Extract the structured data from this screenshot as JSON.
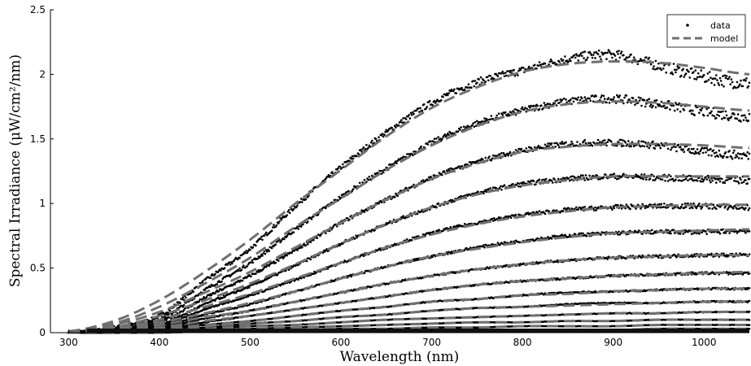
{
  "chart_data": {
    "type": "line",
    "title": "",
    "xlabel": "Wavelength (nm)",
    "ylabel": "Spectral Irradiance (μW/cm²/nm)",
    "xlim": [
      280,
      1050
    ],
    "ylim": [
      0,
      2.5
    ],
    "xticks": [
      300,
      400,
      500,
      600,
      700,
      800,
      900,
      1000
    ],
    "yticks": [
      0,
      0.5,
      1,
      1.5,
      2,
      2.5
    ],
    "ytick_labels": [
      "0",
      "0.5",
      "1",
      "1.5",
      "2",
      "2.5"
    ],
    "grid": false,
    "legend": {
      "position": "top-right",
      "entries": [
        "data",
        "model"
      ]
    },
    "x": [
      300,
      350,
      400,
      450,
      500,
      550,
      600,
      650,
      700,
      750,
      800,
      850,
      900,
      950,
      1000,
      1050
    ],
    "series": [
      {
        "curve": 1,
        "model": [
          0.01,
          0.09,
          0.25,
          0.47,
          0.72,
          1.0,
          1.26,
          1.52,
          1.74,
          1.9,
          2.02,
          2.08,
          2.1,
          2.09,
          2.05,
          2.0
        ],
        "data": [
          0.0,
          0.04,
          0.13,
          0.4,
          0.65,
          0.98,
          1.28,
          1.55,
          1.78,
          1.94,
          2.03,
          2.12,
          2.15,
          2.07,
          1.98,
          1.93
        ]
      },
      {
        "curve": 2,
        "model": [
          0.01,
          0.07,
          0.2,
          0.38,
          0.58,
          0.82,
          1.04,
          1.26,
          1.45,
          1.6,
          1.71,
          1.77,
          1.79,
          1.78,
          1.75,
          1.72
        ],
        "data": [
          0.0,
          0.03,
          0.1,
          0.33,
          0.54,
          0.8,
          1.05,
          1.27,
          1.47,
          1.62,
          1.72,
          1.79,
          1.81,
          1.77,
          1.71,
          1.67
        ]
      },
      {
        "curve": 3,
        "model": [
          0.01,
          0.06,
          0.16,
          0.31,
          0.47,
          0.66,
          0.85,
          1.03,
          1.19,
          1.31,
          1.4,
          1.44,
          1.46,
          1.46,
          1.45,
          1.43
        ],
        "data": [
          0.0,
          0.02,
          0.08,
          0.27,
          0.44,
          0.64,
          0.85,
          1.03,
          1.2,
          1.32,
          1.41,
          1.46,
          1.47,
          1.45,
          1.4,
          1.37
        ]
      },
      {
        "curve": 4,
        "model": [
          0.0,
          0.04,
          0.13,
          0.25,
          0.38,
          0.53,
          0.69,
          0.84,
          0.97,
          1.07,
          1.14,
          1.18,
          1.21,
          1.21,
          1.21,
          1.21
        ],
        "data": [
          0.0,
          0.02,
          0.06,
          0.22,
          0.36,
          0.52,
          0.69,
          0.84,
          0.97,
          1.08,
          1.15,
          1.19,
          1.21,
          1.2,
          1.19,
          1.18
        ]
      },
      {
        "curve": 5,
        "model": [
          0.0,
          0.03,
          0.1,
          0.2,
          0.3,
          0.42,
          0.54,
          0.66,
          0.76,
          0.84,
          0.9,
          0.94,
          0.97,
          0.98,
          0.99,
          0.99
        ],
        "data": [
          0.0,
          0.01,
          0.05,
          0.18,
          0.29,
          0.41,
          0.54,
          0.66,
          0.77,
          0.85,
          0.91,
          0.95,
          0.97,
          0.98,
          0.98,
          0.97
        ]
      },
      {
        "curve": 6,
        "model": [
          0.0,
          0.03,
          0.08,
          0.15,
          0.23,
          0.32,
          0.42,
          0.51,
          0.59,
          0.65,
          0.7,
          0.74,
          0.77,
          0.78,
          0.79,
          0.8
        ],
        "data": [
          0.0,
          0.01,
          0.04,
          0.14,
          0.22,
          0.32,
          0.42,
          0.51,
          0.59,
          0.66,
          0.71,
          0.75,
          0.77,
          0.78,
          0.78,
          0.79
        ]
      },
      {
        "curve": 7,
        "model": [
          0.0,
          0.02,
          0.06,
          0.12,
          0.17,
          0.24,
          0.31,
          0.38,
          0.44,
          0.49,
          0.53,
          0.56,
          0.58,
          0.59,
          0.6,
          0.6
        ],
        "data": [
          0.0,
          0.01,
          0.03,
          0.11,
          0.17,
          0.24,
          0.31,
          0.38,
          0.44,
          0.49,
          0.53,
          0.56,
          0.58,
          0.59,
          0.6,
          0.6
        ]
      },
      {
        "curve": 8,
        "model": [
          0.0,
          0.01,
          0.04,
          0.09,
          0.13,
          0.18,
          0.23,
          0.28,
          0.33,
          0.37,
          0.4,
          0.42,
          0.44,
          0.45,
          0.46,
          0.47
        ],
        "data": [
          0.0,
          0.01,
          0.02,
          0.08,
          0.13,
          0.18,
          0.23,
          0.28,
          0.33,
          0.37,
          0.4,
          0.42,
          0.44,
          0.45,
          0.46,
          0.46
        ]
      },
      {
        "curve": 9,
        "model": [
          0.0,
          0.01,
          0.03,
          0.06,
          0.09,
          0.13,
          0.17,
          0.2,
          0.24,
          0.26,
          0.29,
          0.3,
          0.32,
          0.33,
          0.34,
          0.34
        ],
        "data": [
          0.0,
          0.0,
          0.02,
          0.06,
          0.09,
          0.13,
          0.17,
          0.2,
          0.24,
          0.26,
          0.29,
          0.31,
          0.32,
          0.33,
          0.34,
          0.34
        ]
      },
      {
        "curve": 10,
        "model": [
          0.0,
          0.01,
          0.02,
          0.05,
          0.07,
          0.09,
          0.12,
          0.14,
          0.17,
          0.19,
          0.2,
          0.21,
          0.22,
          0.23,
          0.24,
          0.24
        ],
        "data": [
          0.0,
          0.0,
          0.01,
          0.04,
          0.07,
          0.09,
          0.12,
          0.14,
          0.17,
          0.19,
          0.2,
          0.22,
          0.23,
          0.23,
          0.24,
          0.24
        ]
      },
      {
        "curve": 11,
        "model": [
          0.0,
          0.0,
          0.02,
          0.03,
          0.05,
          0.06,
          0.08,
          0.1,
          0.11,
          0.12,
          0.13,
          0.14,
          0.15,
          0.15,
          0.16,
          0.16
        ],
        "data": [
          0.0,
          0.0,
          0.01,
          0.03,
          0.05,
          0.06,
          0.08,
          0.1,
          0.11,
          0.12,
          0.13,
          0.14,
          0.15,
          0.15,
          0.16,
          0.16
        ]
      },
      {
        "curve": 12,
        "model": [
          0.0,
          0.0,
          0.01,
          0.02,
          0.03,
          0.04,
          0.05,
          0.06,
          0.07,
          0.08,
          0.08,
          0.09,
          0.09,
          0.1,
          0.1,
          0.1
        ],
        "data": [
          0.0,
          0.0,
          0.01,
          0.02,
          0.03,
          0.04,
          0.05,
          0.06,
          0.07,
          0.08,
          0.08,
          0.09,
          0.09,
          0.1,
          0.1,
          0.1
        ]
      },
      {
        "curve": 13,
        "model": [
          0.0,
          0.0,
          0.01,
          0.01,
          0.02,
          0.02,
          0.03,
          0.03,
          0.04,
          0.04,
          0.05,
          0.05,
          0.05,
          0.06,
          0.06,
          0.06
        ],
        "data": [
          0.0,
          0.0,
          0.0,
          0.01,
          0.02,
          0.02,
          0.03,
          0.03,
          0.04,
          0.04,
          0.05,
          0.05,
          0.05,
          0.06,
          0.06,
          0.06
        ]
      },
      {
        "curve": 14,
        "model": [
          0.0,
          0.0,
          0.0,
          0.01,
          0.01,
          0.01,
          0.01,
          0.02,
          0.02,
          0.02,
          0.02,
          0.02,
          0.02,
          0.03,
          0.03,
          0.03
        ],
        "data": [
          0.0,
          0.0,
          0.0,
          0.01,
          0.01,
          0.01,
          0.01,
          0.02,
          0.02,
          0.02,
          0.02,
          0.02,
          0.02,
          0.03,
          0.03,
          0.03
        ]
      }
    ],
    "colors": {
      "data": "#000000",
      "model": "#707070"
    }
  }
}
